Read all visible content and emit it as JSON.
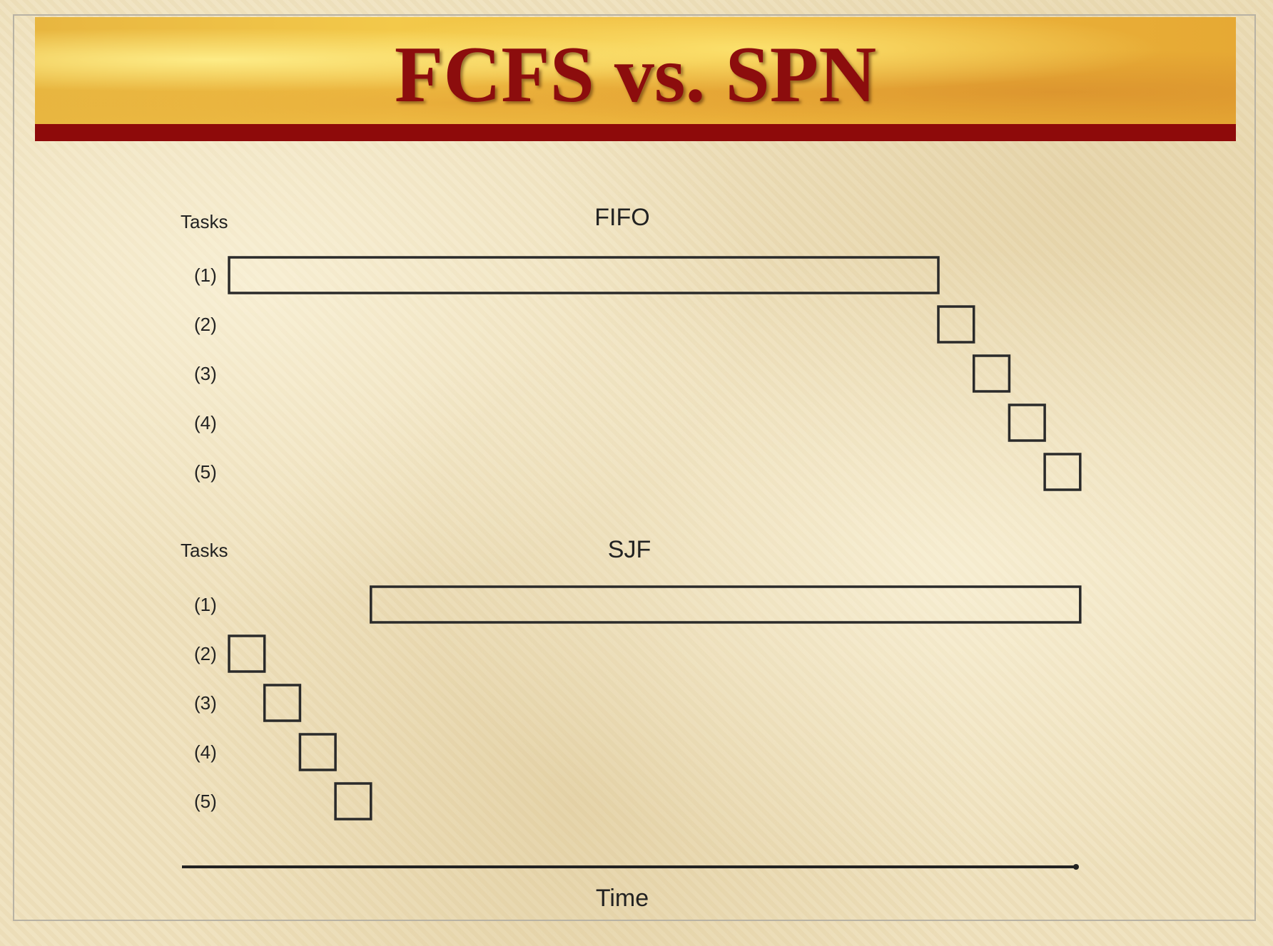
{
  "title": "FCFS vs. SPN",
  "fifo": {
    "heading": "FIFO",
    "axis_label": "Tasks",
    "tasks": [
      {
        "label": "(1)",
        "start": 0,
        "duration": 20
      },
      {
        "label": "(2)",
        "start": 20,
        "duration": 1
      },
      {
        "label": "(3)",
        "start": 21,
        "duration": 1
      },
      {
        "label": "(4)",
        "start": 22,
        "duration": 1
      },
      {
        "label": "(5)",
        "start": 23,
        "duration": 1
      }
    ]
  },
  "sjf": {
    "heading": "SJF",
    "axis_label": "Tasks",
    "tasks": [
      {
        "label": "(1)",
        "start": 4,
        "duration": 20
      },
      {
        "label": "(2)",
        "start": 0,
        "duration": 1
      },
      {
        "label": "(3)",
        "start": 1,
        "duration": 1
      },
      {
        "label": "(4)",
        "start": 2,
        "duration": 1
      },
      {
        "label": "(5)",
        "start": 3,
        "duration": 1
      }
    ]
  },
  "time_axis": {
    "label": "Time"
  }
}
